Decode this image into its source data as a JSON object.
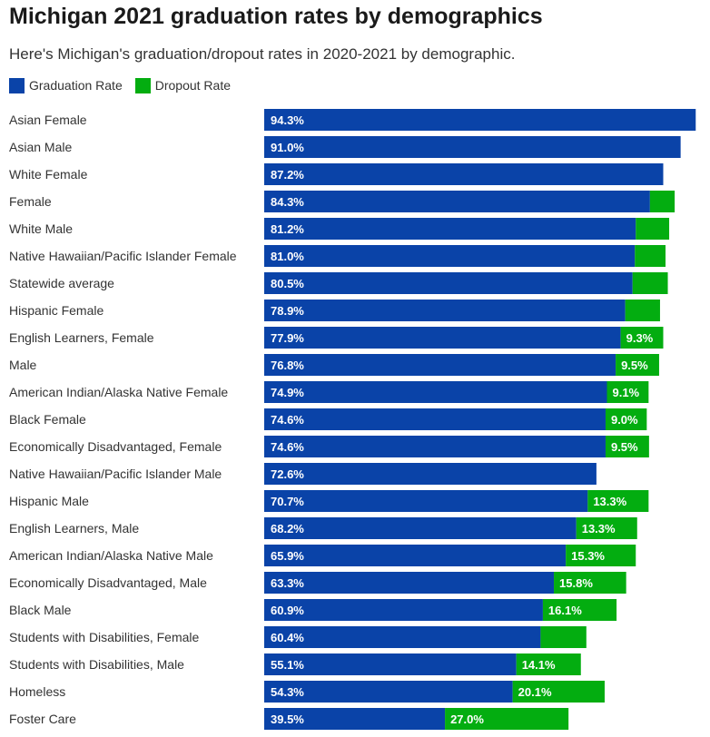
{
  "title": "Michigan 2021 graduation rates by demographics",
  "subtitle": "Here's Michigan's graduation/dropout rates in 2020-2021 by demographic.",
  "colors": {
    "graduation": "#0a43a8",
    "dropout": "#03ad10"
  },
  "chart_data": {
    "type": "bar",
    "orientation": "horizontal",
    "stacked": true,
    "title": "Michigan 2021 graduation rates by demographics",
    "subtitle": "Here's Michigan's graduation/dropout rates in 2020-2021 by demographic.",
    "legend_position": "top-left",
    "xlim": [
      0,
      100
    ],
    "categories": [
      "Asian Female",
      "Asian Male",
      "White Female",
      "Female",
      "White Male",
      "Native Hawaiian/Pacific Islander Female",
      "Statewide average",
      "Hispanic Female",
      "English Learners, Female",
      "Male",
      "American Indian/Alaska Native Female",
      "Black Female",
      "Economically Disadvantaged, Female",
      "Native Hawaiian/Pacific Islander Male",
      "Hispanic Male",
      "English Learners, Male",
      "American Indian/Alaska Native Male",
      "Economically Disadvantaged, Male",
      "Black Male",
      "Students with Disabilities, Female",
      "Students with Disabilities, Male",
      "Homeless",
      "Foster Care"
    ],
    "series": [
      {
        "name": "Graduation Rate",
        "values": [
          94.3,
          91.0,
          87.2,
          84.3,
          81.2,
          81.0,
          80.5,
          78.9,
          77.9,
          76.8,
          74.9,
          74.6,
          74.6,
          72.6,
          70.7,
          68.2,
          65.9,
          63.3,
          60.9,
          60.4,
          55.1,
          54.3,
          39.5
        ],
        "labels": [
          "94.3%",
          "91.0%",
          "87.2%",
          "84.3%",
          "81.2%",
          "81.0%",
          "80.5%",
          "78.9%",
          "77.9%",
          "76.8%",
          "74.9%",
          "74.6%",
          "74.6%",
          "72.6%",
          "70.7%",
          "68.2%",
          "65.9%",
          "63.3%",
          "60.9%",
          "60.4%",
          "55.1%",
          "54.3%",
          "39.5%"
        ]
      },
      {
        "name": "Dropout Rate",
        "values": [
          0.0,
          0.0,
          0.0,
          5.4,
          7.3,
          6.7,
          7.7,
          7.6,
          9.3,
          9.5,
          9.1,
          9.0,
          9.5,
          0.0,
          13.3,
          13.3,
          15.3,
          15.8,
          16.1,
          10.0,
          14.1,
          20.1,
          27.0
        ],
        "labels": [
          "",
          "",
          "",
          "",
          "",
          "",
          "",
          "",
          "9.3%",
          "9.5%",
          "9.1%",
          "9.0%",
          "9.5%",
          "",
          "13.3%",
          "13.3%",
          "15.3%",
          "15.8%",
          "16.1%",
          "",
          "14.1%",
          "20.1%",
          "27.0%"
        ]
      }
    ]
  }
}
